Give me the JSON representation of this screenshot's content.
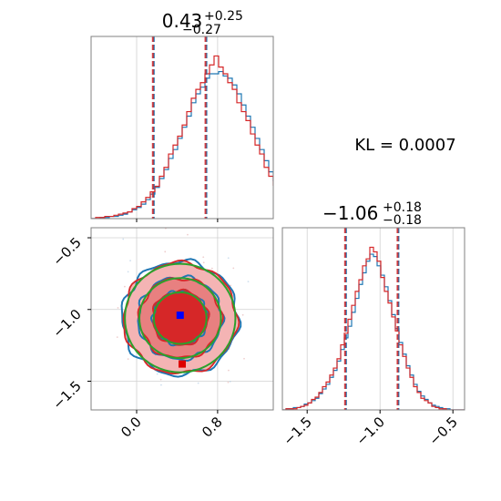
{
  "chart_data": {
    "type": "corner",
    "annotation": "KL = 0.0007",
    "colors": {
      "reference": "#1f77b4",
      "estimate": "#d62728",
      "overlay_contour": "#2ca02c",
      "marker_true": "#0000ff",
      "marker_estimate": "#dd0000",
      "quantile_line_blue": "#1f77b4",
      "quantile_line_red": "#d62728"
    },
    "parameters": [
      {
        "title_main": "0.43",
        "title_sup": "+0.25",
        "title_sub": "−0.27",
        "range": [
          -0.45,
          1.35
        ],
        "median": 0.43,
        "quantiles": [
          0.16,
          0.68
        ],
        "ticks": [
          0.0,
          0.8
        ],
        "tick_labels": [
          "0.0",
          "0.8"
        ]
      },
      {
        "title_main": "−1.06",
        "title_sup": "+0.18",
        "title_sub": "−0.18",
        "range": [
          -1.67,
          -0.42
        ],
        "median": -1.06,
        "quantiles": [
          -1.24,
          -0.88
        ],
        "ticks": [
          -1.5,
          -1.0,
          -0.5
        ],
        "tick_labels": [
          "−1.5",
          "−1.0",
          "−0.5"
        ]
      }
    ],
    "scatter_panel": {
      "x_ticks": [
        0.0,
        0.8
      ],
      "x_tick_labels": [
        "0.0",
        "0.8"
      ],
      "y_ticks": [
        -0.5,
        -1.0,
        -1.5
      ],
      "y_tick_labels": [
        "−0.5",
        "−1.0",
        "−1.5"
      ],
      "x_range": [
        -0.45,
        1.35
      ],
      "y_range": [
        -1.7,
        -0.43
      ],
      "true_point": [
        0.43,
        -1.04
      ],
      "estimate_point": [
        0.45,
        -1.38
      ],
      "contour_center": [
        0.43,
        -1.06
      ],
      "contour_sigma": [
        0.26,
        0.18
      ]
    },
    "hist1": {
      "bin_start": -0.45,
      "bin_width": 0.045,
      "reference_counts": [
        0,
        0,
        1,
        1,
        2,
        2,
        3,
        4,
        6,
        8,
        10,
        13,
        17,
        22,
        28,
        36,
        44,
        54,
        62,
        72,
        82,
        92,
        104,
        112,
        118,
        126,
        130,
        130,
        132,
        128,
        126,
        120,
        112,
        102,
        92,
        82,
        72,
        62,
        52,
        42,
        34,
        26,
        20,
        14,
        10,
        7,
        5,
        3,
        2,
        1
      ],
      "estimate_counts": [
        0,
        1,
        1,
        2,
        2,
        3,
        4,
        5,
        6,
        9,
        11,
        15,
        19,
        24,
        29,
        38,
        46,
        58,
        66,
        74,
        84,
        96,
        108,
        116,
        122,
        130,
        138,
        146,
        136,
        130,
        122,
        116,
        104,
        96,
        88,
        76,
        66,
        58,
        46,
        38,
        30,
        22,
        18,
        12,
        8,
        6,
        4,
        2,
        1,
        0
      ]
    },
    "hist2": {
      "bin_start": -1.67,
      "bin_width": 0.025,
      "reference_counts": [
        0,
        1,
        1,
        2,
        2,
        3,
        5,
        6,
        8,
        10,
        14,
        18,
        22,
        28,
        34,
        42,
        52,
        62,
        72,
        84,
        96,
        108,
        118,
        128,
        134,
        132,
        124,
        116,
        106,
        94,
        82,
        70,
        58,
        48,
        38,
        30,
        22,
        16,
        12,
        9,
        6,
        4,
        3,
        2,
        1,
        1,
        0,
        0,
        0,
        0
      ],
      "estimate_counts": [
        0,
        1,
        1,
        1,
        2,
        3,
        4,
        6,
        9,
        11,
        15,
        20,
        24,
        30,
        36,
        44,
        56,
        66,
        78,
        90,
        102,
        112,
        124,
        130,
        140,
        136,
        128,
        114,
        102,
        92,
        80,
        68,
        56,
        46,
        36,
        28,
        20,
        15,
        10,
        8,
        6,
        3,
        2,
        1,
        1,
        0,
        0,
        0,
        0,
        0
      ]
    }
  }
}
